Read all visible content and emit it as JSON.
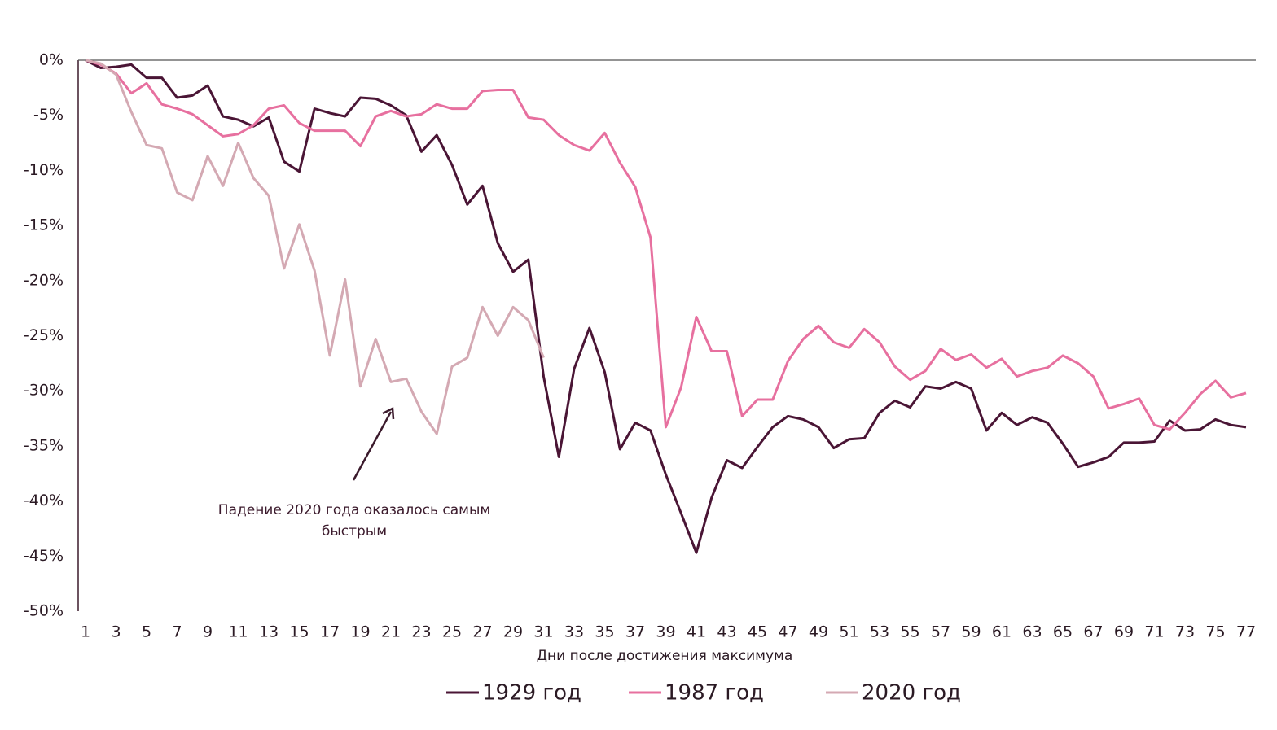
{
  "chart_data": {
    "type": "line",
    "x_label": "Дни после достижения максимума",
    "annotation": "Падение 2020 года оказалось самым быстрым",
    "x": [
      1,
      2,
      3,
      4,
      5,
      6,
      7,
      8,
      9,
      10,
      11,
      12,
      13,
      14,
      15,
      16,
      17,
      18,
      19,
      20,
      21,
      22,
      23,
      24,
      25,
      26,
      27,
      28,
      29,
      30,
      31,
      32,
      33,
      34,
      35,
      36,
      37,
      38,
      39,
      40,
      41,
      42,
      43,
      44,
      45,
      46,
      47,
      48,
      49,
      50,
      51,
      52,
      53,
      54,
      55,
      56,
      57,
      58,
      59,
      60,
      61,
      62,
      63,
      64,
      65,
      66,
      67,
      68,
      69,
      70,
      71,
      72,
      73,
      74,
      75,
      76,
      77
    ],
    "xlim": [
      1,
      77
    ],
    "xticks": [
      1,
      3,
      5,
      7,
      9,
      11,
      13,
      15,
      17,
      19,
      21,
      23,
      25,
      27,
      29,
      31,
      33,
      35,
      37,
      39,
      41,
      43,
      45,
      47,
      49,
      51,
      53,
      55,
      57,
      59,
      61,
      63,
      65,
      67,
      69,
      71,
      73,
      75,
      77
    ],
    "ylim": [
      -50,
      0
    ],
    "yticks": [
      {
        "value": 0,
        "label": "0%"
      },
      {
        "value": -5,
        "label": "-5%"
      },
      {
        "value": -10,
        "label": "-10%"
      },
      {
        "value": -15,
        "label": "-15%"
      },
      {
        "value": -20,
        "label": "-20%"
      },
      {
        "value": -25,
        "label": "-25%"
      },
      {
        "value": -30,
        "label": "-30%"
      },
      {
        "value": -35,
        "label": "-35%"
      },
      {
        "value": -40,
        "label": "-40%"
      },
      {
        "value": -45,
        "label": "-45%"
      },
      {
        "value": -50,
        "label": "-50%"
      }
    ],
    "grid": false,
    "legend": "bottom",
    "series": [
      {
        "name": "1929 год",
        "color": "#4a1535",
        "values": [
          0,
          -0.7,
          -0.6,
          -0.4,
          -1.6,
          -1.6,
          -3.4,
          -3.2,
          -2.3,
          -5.1,
          -5.4,
          -6.0,
          -5.2,
          -9.2,
          -10.1,
          -4.4,
          -4.8,
          -5.1,
          -3.4,
          -3.5,
          -4.1,
          -5.0,
          -8.3,
          -6.8,
          -9.5,
          -13.1,
          -11.4,
          -16.6,
          -19.2,
          -18.1,
          -28.7,
          -36.0,
          -28.0,
          -24.3,
          -28.3,
          -35.3,
          -32.9,
          -33.6,
          -37.6,
          -41.1,
          -44.7,
          -39.7,
          -36.3,
          -37.0,
          -35.1,
          -33.3,
          -32.3,
          -32.6,
          -33.3,
          -35.2,
          -34.4,
          -34.3,
          -32.0,
          -30.9,
          -31.5,
          -29.6,
          -29.8,
          -29.2,
          -29.8,
          -33.6,
          -32.0,
          -33.1,
          -32.4,
          -32.9,
          -34.8,
          -36.9,
          -36.5,
          -36.0,
          -34.7,
          -34.7,
          -34.6,
          -32.7,
          -33.6,
          -33.5,
          -32.6,
          -33.1,
          -33.3
        ]
      },
      {
        "name": "1987 год",
        "color": "#e7709f",
        "values": [
          0,
          -0.4,
          -1.2,
          -3.0,
          -2.1,
          -4.0,
          -4.4,
          -4.9,
          -5.9,
          -6.9,
          -6.7,
          -5.9,
          -4.4,
          -4.1,
          -5.7,
          -6.4,
          -6.4,
          -6.4,
          -7.8,
          -5.1,
          -4.6,
          -5.1,
          -4.9,
          -4.0,
          -4.4,
          -4.4,
          -2.8,
          -2.7,
          -2.7,
          -5.2,
          -5.4,
          -6.8,
          -7.7,
          -8.2,
          -6.6,
          -9.3,
          -11.5,
          -16.1,
          -33.3,
          -29.7,
          -23.3,
          -26.4,
          -26.4,
          -32.3,
          -30.8,
          -30.8,
          -27.3,
          -25.3,
          -24.1,
          -25.6,
          -26.1,
          -24.4,
          -25.6,
          -27.8,
          -29.0,
          -28.2,
          -26.2,
          -27.2,
          -26.7,
          -27.9,
          -27.1,
          -28.7,
          -28.2,
          -27.9,
          -26.8,
          -27.5,
          -28.7,
          -31.6,
          -31.2,
          -30.7,
          -33.1,
          -33.5,
          -32.0,
          -30.3,
          -29.1,
          -30.6,
          -30.2
        ]
      },
      {
        "name": "2020 год",
        "color": "#d4a9b3",
        "values": [
          0,
          -0.3,
          -1.3,
          -4.7,
          -7.7,
          -8.0,
          -12.0,
          -12.7,
          -8.7,
          -11.4,
          -7.5,
          -10.7,
          -12.3,
          -18.9,
          -14.9,
          -19.1,
          -26.8,
          -19.9,
          -29.6,
          -25.3,
          -29.2,
          -28.9,
          -31.9,
          -33.9,
          -27.8,
          -27.0,
          -22.4,
          -25.0,
          -22.4,
          -23.6,
          -27.0,
          null,
          null,
          null,
          null,
          null,
          null,
          null,
          null,
          null,
          null,
          null,
          null,
          null,
          null,
          null,
          null,
          null,
          null,
          null,
          null,
          null,
          null,
          null,
          null,
          null,
          null,
          null,
          null,
          null,
          null,
          null,
          null,
          null,
          null,
          null,
          null,
          null,
          null,
          null,
          null,
          null,
          null,
          null,
          null,
          null,
          null
        ]
      }
    ]
  }
}
